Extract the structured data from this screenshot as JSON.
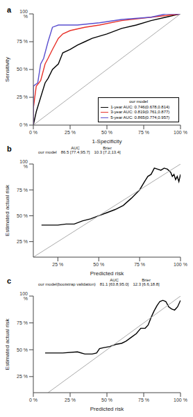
{
  "chart_data": [
    {
      "panel": "a",
      "type": "line",
      "x_label": "1-Specificity",
      "y_label": "Sensitivity",
      "xlim": [
        0,
        100
      ],
      "ylim": [
        0,
        100
      ],
      "xticks": [
        {
          "value": 0,
          "label": "0 %"
        },
        {
          "value": 25,
          "label": "25 %"
        },
        {
          "value": 50,
          "label": "50 %"
        },
        {
          "value": 75,
          "label": "75 %"
        },
        {
          "value": 100,
          "label": "100 %"
        }
      ],
      "yticks": [
        {
          "value": 0,
          "label": "0 %"
        },
        {
          "value": 25,
          "label": "25 %"
        },
        {
          "value": 50,
          "label": "50 %"
        },
        {
          "value": 75,
          "label": "75 %"
        },
        {
          "value": 100,
          "label": "100 %"
        }
      ],
      "grid": false,
      "legend": "lower right",
      "legend_title": "our model",
      "series": [
        {
          "name": "1-year AUC: 0.746(0.678,0.814)",
          "color": "#000000",
          "x": [
            0,
            2,
            5,
            8,
            10,
            13,
            17,
            20,
            25,
            30,
            35,
            40,
            50,
            60,
            70,
            80,
            90,
            100
          ],
          "values": [
            0,
            12,
            25,
            38,
            42,
            50,
            55,
            65,
            68,
            72,
            75,
            78,
            82,
            87,
            90,
            94,
            97,
            100
          ]
        },
        {
          "name": "3-year AUC: 0.819(0.761,0.877)",
          "color": "#e8322a",
          "x": [
            0,
            0,
            2,
            5,
            8,
            10,
            13,
            17,
            20,
            25,
            35,
            45,
            60,
            80,
            100
          ],
          "values": [
            0,
            15,
            35,
            40,
            55,
            60,
            68,
            78,
            82,
            85,
            88,
            90,
            94,
            97,
            100
          ]
        },
        {
          "name": "5-year AUC: 0.865(0.774,0.957)",
          "color": "#5a4fcf",
          "x": [
            0,
            0,
            3,
            5,
            7,
            10,
            13,
            17,
            30,
            45,
            60,
            80,
            90,
            100
          ],
          "values": [
            0,
            35,
            38,
            55,
            60,
            75,
            88,
            90,
            90,
            92,
            95,
            97,
            100,
            100
          ]
        },
        {
          "color": "#aaaaaa",
          "x": [
            0,
            100
          ],
          "values": [
            0,
            100
          ]
        }
      ]
    },
    {
      "panel": "b",
      "type": "line",
      "x_label": "Predicted risk",
      "y_label": "Estimated actual risk",
      "xlim": [
        10,
        100
      ],
      "ylim": [
        10,
        100
      ],
      "xticks": [
        {
          "value": 25,
          "label": "25 %"
        },
        {
          "value": 50,
          "label": "50 %"
        },
        {
          "value": 75,
          "label": "75 %"
        },
        {
          "value": 100,
          "label": "100 %"
        }
      ],
      "yticks": [
        {
          "value": 25,
          "label": "25 %"
        },
        {
          "value": 50,
          "label": "50 %"
        },
        {
          "value": 75,
          "label": "75 %"
        },
        {
          "value": 100,
          "label": "100 %"
        }
      ],
      "grid": false,
      "annotation": {
        "columns": [
          "AUC",
          "Brier"
        ],
        "row": [
          "our model",
          "86.5 [77.4,95.7]",
          "10.3 [7.2,13.4]"
        ]
      },
      "series": [
        {
          "color": "#000000",
          "x": [
            15,
            25,
            30,
            35,
            40,
            45,
            50,
            55,
            60,
            65,
            70,
            75,
            78,
            80,
            82,
            84,
            86,
            88,
            90,
            92,
            94,
            95,
            96,
            97,
            98,
            99,
            100
          ],
          "values": [
            41,
            41,
            42,
            42,
            45,
            47,
            50,
            53,
            56,
            60,
            67,
            75,
            83,
            88,
            90,
            96,
            95,
            94,
            96,
            95,
            92,
            88,
            90,
            85,
            88,
            83,
            90
          ]
        },
        {
          "color": "#aaaaaa",
          "x": [
            10,
            100
          ],
          "values": [
            10,
            100
          ]
        }
      ]
    },
    {
      "panel": "c",
      "type": "line",
      "x_label": "Predicted risk",
      "y_label": "Estimated actual risk",
      "xlim": [
        0,
        100
      ],
      "ylim": [
        10,
        100
      ],
      "xticks": [
        {
          "value": 0,
          "label": "0 %"
        },
        {
          "value": 25,
          "label": "25 %"
        },
        {
          "value": 50,
          "label": "50 %"
        },
        {
          "value": 75,
          "label": "75 %"
        },
        {
          "value": 100,
          "label": "100 %"
        }
      ],
      "yticks": [
        {
          "value": 25,
          "label": "25 %"
        },
        {
          "value": 50,
          "label": "50 %"
        },
        {
          "value": 75,
          "label": "75 %"
        },
        {
          "value": 100,
          "label": "100 %"
        }
      ],
      "grid": false,
      "annotation": {
        "columns": [
          "AUC",
          "Brier"
        ],
        "row": [
          "our model(bootstrap validation)",
          "81.1 [63.8,95.0]",
          "12.3 [6.6,18.8]"
        ]
      },
      "series": [
        {
          "color": "#000000",
          "x": [
            8,
            20,
            30,
            35,
            40,
            43,
            45,
            48,
            52,
            56,
            60,
            63,
            67,
            70,
            73,
            76,
            78,
            80,
            82,
            84,
            86,
            88,
            90,
            92,
            94,
            96,
            98,
            100
          ],
          "values": [
            47,
            47,
            48,
            46,
            46,
            47,
            51,
            52,
            53,
            55,
            56,
            58,
            62,
            65,
            70,
            70,
            73,
            80,
            86,
            91,
            95,
            96,
            95,
            90,
            88,
            87,
            90,
            96
          ]
        },
        {
          "color": "#aaaaaa",
          "x": [
            10,
            100
          ],
          "values": [
            10,
            100
          ]
        }
      ]
    }
  ]
}
